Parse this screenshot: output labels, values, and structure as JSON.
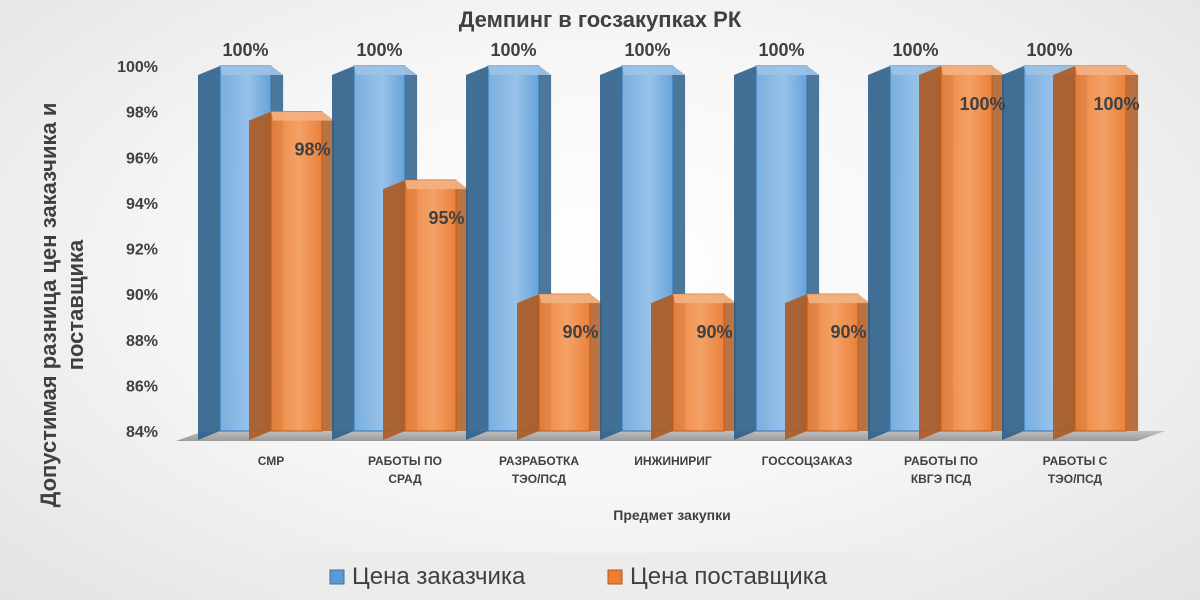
{
  "colors": {
    "customer": "#5b9bd5",
    "customer_light": "#9dc3e6",
    "customer_dark": "#2e5f8a",
    "supplier": "#ed7d31",
    "supplier_light": "#f4b183",
    "supplier_dark": "#ae5a21",
    "floor": "#a6a6a6",
    "legend_bg": "#ececec"
  },
  "chart_data": {
    "type": "bar",
    "style": "3d-clustered",
    "title": "Демпинг в госзакупках РК",
    "xlabel": "Предмет закупки",
    "ylabel": "Допустимая разница цен заказчика и поставщика",
    "ylim": [
      84,
      100
    ],
    "yticks": [
      84,
      86,
      88,
      90,
      92,
      94,
      96,
      98,
      100
    ],
    "ytick_labels": [
      "84%",
      "86%",
      "88%",
      "90%",
      "92%",
      "94%",
      "96%",
      "98%",
      "100%"
    ],
    "grid": false,
    "legend_position": "bottom",
    "categories": [
      [
        "СМР"
      ],
      [
        "РАБОТЫ ПО",
        "СРАД"
      ],
      [
        "РАЗРАБОТКА",
        "ТЭО/ПСД"
      ],
      [
        "ИНЖИНИРИГ"
      ],
      [
        "ГОССОЦЗАКАЗ"
      ],
      [
        "РАБОТЫ ПО",
        "КВГЭ ПСД"
      ],
      [
        "РАБОТЫ С",
        "ТЭО/ПСД"
      ]
    ],
    "series": [
      {
        "name": "Цена заказчика",
        "color_key": "customer",
        "values": [
          100,
          100,
          100,
          100,
          100,
          100,
          100
        ],
        "labels": [
          "100%",
          "100%",
          "100%",
          "100%",
          "100%",
          "100%",
          "100%"
        ]
      },
      {
        "name": "Цена поставщика",
        "color_key": "supplier",
        "values": [
          98,
          95,
          90,
          90,
          90,
          100,
          100
        ],
        "labels": [
          "98%",
          "95%",
          "90%",
          "90%",
          "90%",
          "100%",
          "100%"
        ]
      }
    ]
  }
}
